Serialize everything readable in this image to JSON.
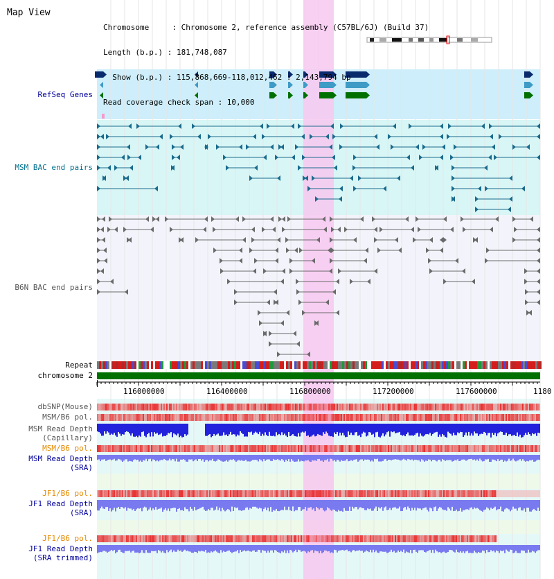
{
  "header": {
    "title": "Map View",
    "info_lines": [
      "Chromosome     : Chromosome 2, reference assembly (C57BL/6J) (Build 37)",
      "Length (b.p.) : 181,748,087",
      "  Show (b.p.) : 115,868,669-118,012,462 : 2,143,794 bp",
      "Read coverage check span : 10,000"
    ]
  },
  "tracks": {
    "refseq": "RefSeq Genes",
    "msm_bac": "MSM BAC end pairs",
    "b6n_bac": "B6N BAC end pairs",
    "repeat": "Repeat",
    "chromosome": "chromosome 2",
    "dbsnp": "dbSNP(Mouse)",
    "msm_b6_pol_1": "MSM/B6 pol.",
    "msm_depth_cap_1": "MSM Read Depth",
    "msm_depth_cap_2": "(Capillary)",
    "msm_b6_pol_2": "MSM/B6 pol.",
    "msm_depth_sra_1": "MSM Read Depth",
    "msm_depth_sra_2": "(SRA)",
    "jf1_b6_pol_1": "JF1/B6 pol.",
    "jf1_depth_sra_1": "JF1 Read Depth",
    "jf1_depth_sra_2": "(SRA)",
    "jf1_b6_pol_2": "JF1/B6 pol.",
    "jf1_depth_trim_1": "JF1 Read Depth",
    "jf1_depth_trim_2": "(SRA trimmed)"
  },
  "axis": {
    "ticks": [
      "116000000",
      "116400000",
      "116800000",
      "117200000",
      "117600000",
      "1180"
    ]
  },
  "colors": {
    "highlight": "#f7c8f0",
    "refseq_bg": "#cdeefa",
    "msm_bg": "#d8f6f6",
    "b6n_bg": "#f3f4fb",
    "lower_bg": "#e4f8f7",
    "msm_line": "#1b6b8c",
    "b6n_line": "#6a6a6a",
    "gene_navy": "#0a2a6e",
    "gene_light": "#3d9bc6",
    "gene_green": "#007000",
    "chromosome_bar": "#007000",
    "depth_blue": "#2222dd",
    "depth_light": "#7a7af0",
    "snp_pink": "#f4b2b2",
    "pol_red": "#e83232"
  }
}
